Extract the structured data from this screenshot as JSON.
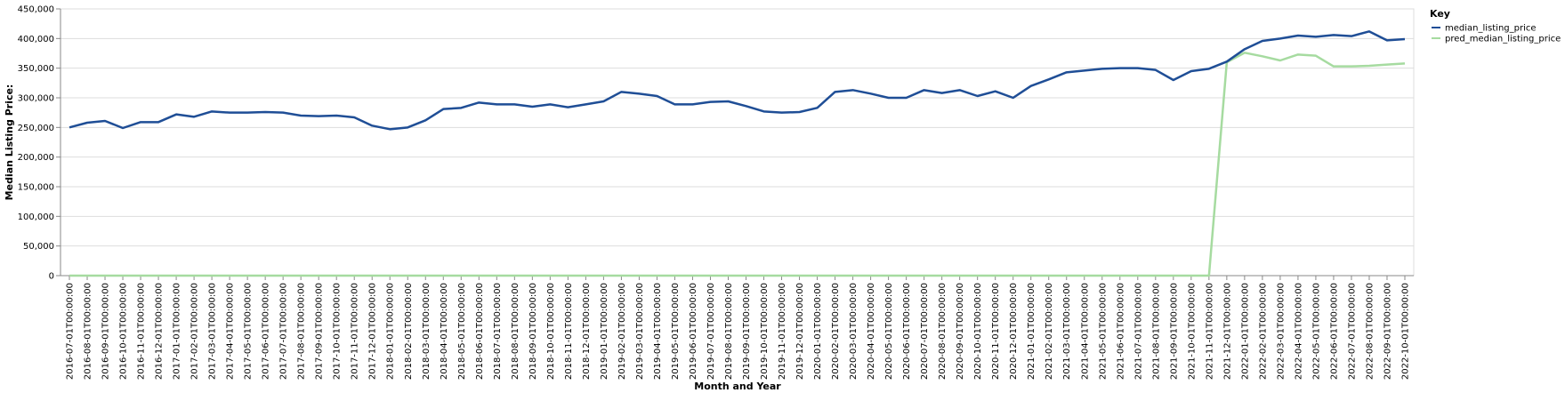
{
  "chart_data": {
    "type": "line",
    "title": "",
    "xlabel": "Month and Year",
    "ylabel": "Median Listing Price:",
    "ylim": [
      0,
      450000
    ],
    "yticks": [
      "0",
      "50,000",
      "100,000",
      "150,000",
      "200,000",
      "250,000",
      "300,000",
      "350,000",
      "400,000",
      "450,000"
    ],
    "grid": true,
    "legend": {
      "title": "Key",
      "position": "top-right"
    },
    "x": [
      "2016-07-01T00:00:00",
      "2016-08-01T00:00:00",
      "2016-09-01T00:00:00",
      "2016-10-01T00:00:00",
      "2016-11-01T00:00:00",
      "2016-12-01T00:00:00",
      "2017-01-01T00:00:00",
      "2017-02-01T00:00:00",
      "2017-03-01T00:00:00",
      "2017-04-01T00:00:00",
      "2017-05-01T00:00:00",
      "2017-06-01T00:00:00",
      "2017-07-01T00:00:00",
      "2017-08-01T00:00:00",
      "2017-09-01T00:00:00",
      "2017-10-01T00:00:00",
      "2017-11-01T00:00:00",
      "2017-12-01T00:00:00",
      "2018-01-01T00:00:00",
      "2018-02-01T00:00:00",
      "2018-03-01T00:00:00",
      "2018-04-01T00:00:00",
      "2018-05-01T00:00:00",
      "2018-06-01T00:00:00",
      "2018-07-01T00:00:00",
      "2018-08-01T00:00:00",
      "2018-09-01T00:00:00",
      "2018-10-01T00:00:00",
      "2018-11-01T00:00:00",
      "2018-12-01T00:00:00",
      "2019-01-01T00:00:00",
      "2019-02-01T00:00:00",
      "2019-03-01T00:00:00",
      "2019-04-01T00:00:00",
      "2019-05-01T00:00:00",
      "2019-06-01T00:00:00",
      "2019-07-01T00:00:00",
      "2019-08-01T00:00:00",
      "2019-09-01T00:00:00",
      "2019-10-01T00:00:00",
      "2019-11-01T00:00:00",
      "2019-12-01T00:00:00",
      "2020-01-01T00:00:00",
      "2020-02-01T00:00:00",
      "2020-03-01T00:00:00",
      "2020-04-01T00:00:00",
      "2020-05-01T00:00:00",
      "2020-06-01T00:00:00",
      "2020-07-01T00:00:00",
      "2020-08-01T00:00:00",
      "2020-09-01T00:00:00",
      "2020-10-01T00:00:00",
      "2020-11-01T00:00:00",
      "2020-12-01T00:00:00",
      "2021-01-01T00:00:00",
      "2021-02-01T00:00:00",
      "2021-03-01T00:00:00",
      "2021-04-01T00:00:00",
      "2021-05-01T00:00:00",
      "2021-06-01T00:00:00",
      "2021-07-01T00:00:00",
      "2021-08-01T00:00:00",
      "2021-09-01T00:00:00",
      "2021-10-01T00:00:00",
      "2021-11-01T00:00:00",
      "2021-12-01T00:00:00",
      "2022-01-01T00:00:00",
      "2022-02-01T00:00:00",
      "2022-03-01T00:00:00",
      "2022-04-01T00:00:00",
      "2022-05-01T00:00:00",
      "2022-06-01T00:00:00",
      "2022-07-01T00:00:00",
      "2022-08-01T00:00:00",
      "2022-09-01T00:00:00",
      "2022-10-01T00:00:00"
    ],
    "series": [
      {
        "name": "median_listing_price",
        "color": "#1f4e96",
        "values": [
          250000,
          258000,
          261000,
          249000,
          259000,
          259000,
          272000,
          268000,
          277000,
          275000,
          275000,
          276000,
          275000,
          270000,
          269000,
          270000,
          267000,
          253000,
          247000,
          250000,
          262000,
          281000,
          283000,
          292000,
          289000,
          289000,
          285000,
          289000,
          284000,
          289000,
          294000,
          310000,
          307000,
          303000,
          289000,
          289000,
          293000,
          294000,
          286000,
          277000,
          275000,
          276000,
          283000,
          310000,
          313000,
          307000,
          300000,
          300000,
          313000,
          308000,
          313000,
          303000,
          311000,
          300000,
          320000,
          331000,
          343000,
          346000,
          349000,
          350000,
          350000,
          347000,
          330000,
          345000,
          349000,
          361000,
          382000,
          396000,
          400000,
          405000,
          403000,
          406000,
          404000,
          412000,
          397000,
          399000
        ]
      },
      {
        "name": "pred_median_listing_price",
        "color": "#a6dba0",
        "values": [
          0,
          0,
          0,
          0,
          0,
          0,
          0,
          0,
          0,
          0,
          0,
          0,
          0,
          0,
          0,
          0,
          0,
          0,
          0,
          0,
          0,
          0,
          0,
          0,
          0,
          0,
          0,
          0,
          0,
          0,
          0,
          0,
          0,
          0,
          0,
          0,
          0,
          0,
          0,
          0,
          0,
          0,
          0,
          0,
          0,
          0,
          0,
          0,
          0,
          0,
          0,
          0,
          0,
          0,
          0,
          0,
          0,
          0,
          0,
          0,
          0,
          0,
          0,
          0,
          0,
          360000,
          376000,
          370000,
          363000,
          373000,
          371000,
          353000,
          353000,
          354000,
          356000,
          358000
        ]
      }
    ]
  }
}
